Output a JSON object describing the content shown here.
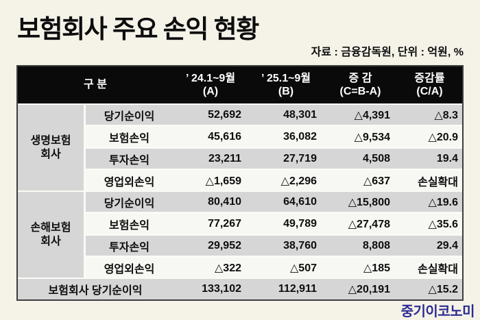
{
  "page": {
    "title": "보험회사 주요 손익 현황",
    "source_note": "자료 : 금융감독원, 단위 : 억원, %",
    "credit": "중기이코노미"
  },
  "colors": {
    "background": "#f5f2e8",
    "header_bg": "#0a0a0a",
    "header_text": "#ffffff",
    "row_gray": "#d6d6d6",
    "row_light": "#f7f7f3",
    "separator_light": "#fbfaf5",
    "border_dark": "#3d3d3d",
    "text_dark": "#0d0d0d",
    "watermark": "#2b2b91"
  },
  "table": {
    "header": {
      "group": "구 분",
      "cols": [
        {
          "line1": "’ 24.1~9월",
          "line2": "(A)"
        },
        {
          "line1": "’ 25.1~9월",
          "line2": "(B)"
        },
        {
          "line1": "증 감",
          "line2": "(C=B-A)"
        },
        {
          "line1": "증감률",
          "line2": "(C/A)"
        }
      ]
    },
    "groups": [
      {
        "name_line1": "생명보험",
        "name_line2": "회사",
        "rows": [
          {
            "label": "당기순이익",
            "a": "52,692",
            "b": "48,301",
            "c": "△4,391",
            "rate": "△8.3"
          },
          {
            "label": "보험손익",
            "a": "45,616",
            "b": "36,082",
            "c": "△9,534",
            "rate": "△20.9"
          },
          {
            "label": "투자손익",
            "a": "23,211",
            "b": "27,719",
            "c": "4,508",
            "rate": "19.4"
          },
          {
            "label": "영업외손익",
            "a": "△1,659",
            "b": "△2,296",
            "c": "△637",
            "rate": "손실확대"
          }
        ]
      },
      {
        "name_line1": "손해보험",
        "name_line2": "회사",
        "rows": [
          {
            "label": "당기순이익",
            "a": "80,410",
            "b": "64,610",
            "c": "△15,800",
            "rate": "△19.6"
          },
          {
            "label": "보험손익",
            "a": "77,267",
            "b": "49,789",
            "c": "△27,478",
            "rate": "△35.6"
          },
          {
            "label": "투자손익",
            "a": "29,952",
            "b": "38,760",
            "c": "8,808",
            "rate": "29.4"
          },
          {
            "label": "영업외손익",
            "a": "△322",
            "b": "△507",
            "c": "△185",
            "rate": "손실확대"
          }
        ]
      }
    ],
    "total": {
      "label": "보험회사 당기순이익",
      "a": "133,102",
      "b": "112,911",
      "c": "△20,191",
      "rate": "△15.2"
    }
  },
  "chart_data": {
    "type": "table",
    "title": "보험회사 주요 손익 현황",
    "source_note": "자료 : 금융감독원, 단위 : 억원, %",
    "unit": "억원, %",
    "negative_marker": "△",
    "columns": [
      "구 분",
      "’ 24.1~9월 (A)",
      "’ 25.1~9월 (B)",
      "증 감 (C=B-A)",
      "증감률 (C/A)"
    ],
    "rows": [
      {
        "group": "생명보험회사",
        "item": "당기순이익",
        "a": 52692,
        "b": 48301,
        "change": -4391,
        "rate_pct": -8.3
      },
      {
        "group": "생명보험회사",
        "item": "보험손익",
        "a": 45616,
        "b": 36082,
        "change": -9534,
        "rate_pct": -20.9
      },
      {
        "group": "생명보험회사",
        "item": "투자손익",
        "a": 23211,
        "b": 27719,
        "change": 4508,
        "rate_pct": 19.4
      },
      {
        "group": "생명보험회사",
        "item": "영업외손익",
        "a": -1659,
        "b": -2296,
        "change": -637,
        "rate_label": "손실확대"
      },
      {
        "group": "손해보험회사",
        "item": "당기순이익",
        "a": 80410,
        "b": 64610,
        "change": -15800,
        "rate_pct": -19.6
      },
      {
        "group": "손해보험회사",
        "item": "보험손익",
        "a": 77267,
        "b": 49789,
        "change": -27478,
        "rate_pct": -35.6
      },
      {
        "group": "손해보험회사",
        "item": "투자손익",
        "a": 29952,
        "b": 38760,
        "change": 8808,
        "rate_pct": 29.4
      },
      {
        "group": "손해보험회사",
        "item": "영업외손익",
        "a": -322,
        "b": -507,
        "change": -185,
        "rate_label": "손실확대"
      },
      {
        "item": "보험회사 당기순이익",
        "a": 133102,
        "b": 112911,
        "change": -20191,
        "rate_pct": -15.2
      }
    ]
  }
}
